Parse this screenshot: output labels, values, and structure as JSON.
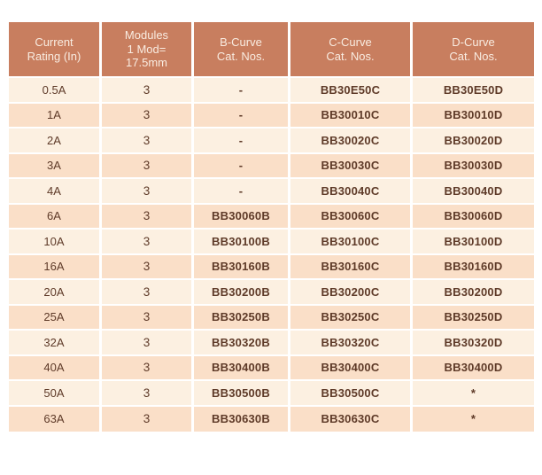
{
  "table": {
    "headers": [
      "Current\nRating (In)",
      "Modules\n1 Mod=\n17.5mm",
      "B-Curve\nCat. Nos.",
      "C-Curve\nCat. Nos.",
      "D-Curve\nCat. Nos."
    ],
    "rows": [
      [
        "0.5A",
        "3",
        "-",
        "BB30E50C",
        "BB30E50D"
      ],
      [
        "1A",
        "3",
        "-",
        "BB30010C",
        "BB30010D"
      ],
      [
        "2A",
        "3",
        "-",
        "BB30020C",
        "BB30020D"
      ],
      [
        "3A",
        "3",
        "-",
        "BB30030C",
        "BB30030D"
      ],
      [
        "4A",
        "3",
        "-",
        "BB30040C",
        "BB30040D"
      ],
      [
        "6A",
        "3",
        "BB30060B",
        "BB30060C",
        "BB30060D"
      ],
      [
        "10A",
        "3",
        "BB30100B",
        "BB30100C",
        "BB30100D"
      ],
      [
        "16A",
        "3",
        "BB30160B",
        "BB30160C",
        "BB30160D"
      ],
      [
        "20A",
        "3",
        "BB30200B",
        "BB30200C",
        "BB30200D"
      ],
      [
        "25A",
        "3",
        "BB30250B",
        "BB30250C",
        "BB30250D"
      ],
      [
        "32A",
        "3",
        "BB30320B",
        "BB30320C",
        "BB30320D"
      ],
      [
        "40A",
        "3",
        "BB30400B",
        "BB30400C",
        "BB30400D"
      ],
      [
        "50A",
        "3",
        "BB30500B",
        "BB30500C",
        "*"
      ],
      [
        "63A",
        "3",
        "BB30630B",
        "BB30630C",
        "*"
      ]
    ],
    "colors": {
      "header_bg": "#c87e5f",
      "header_text": "#f9ece1",
      "row_light": "#fcf0e1",
      "row_dark": "#fadfc8",
      "body_text": "#5e3a28",
      "separator": "#ffffff"
    }
  }
}
